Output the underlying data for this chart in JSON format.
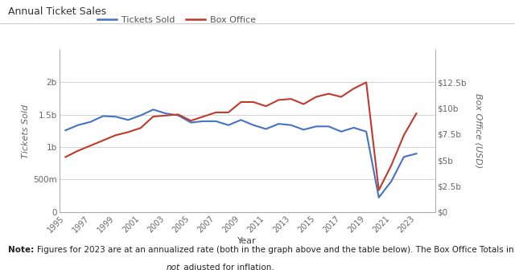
{
  "title": "Annual Ticket Sales",
  "xlabel": "Year",
  "ylabel_left": "Tickets Sold",
  "ylabel_right": "Box Office (USD)",
  "years": [
    1995,
    1996,
    1997,
    1998,
    1999,
    2000,
    2001,
    2002,
    2003,
    2004,
    2005,
    2006,
    2007,
    2008,
    2009,
    2010,
    2011,
    2012,
    2013,
    2014,
    2015,
    2016,
    2017,
    2018,
    2019,
    2020,
    2021,
    2022,
    2023
  ],
  "tickets_sold": [
    1260000000.0,
    1340000000.0,
    1390000000.0,
    1480000000.0,
    1470000000.0,
    1420000000.0,
    1490000000.0,
    1580000000.0,
    1520000000.0,
    1490000000.0,
    1380000000.0,
    1400000000.0,
    1400000000.0,
    1340000000.0,
    1420000000.0,
    1340000000.0,
    1280000000.0,
    1360000000.0,
    1340000000.0,
    1270000000.0,
    1320000000.0,
    1320000000.0,
    1240000000.0,
    1300000000.0,
    1240000000.0,
    223000000.0,
    473000000.0,
    850000000.0,
    900000000.0
  ],
  "box_office": [
    5300000000.0,
    5900000000.0,
    6400000000.0,
    6900000000.0,
    7400000000.0,
    7700000000.0,
    8100000000.0,
    9200000000.0,
    9300000000.0,
    9400000000.0,
    8800000000.0,
    9200000000.0,
    9600000000.0,
    9600000000.0,
    10600000000.0,
    10600000000.0,
    10200000000.0,
    10800000000.0,
    10900000000.0,
    10400000000.0,
    11100000000.0,
    11400000000.0,
    11100000000.0,
    11900000000.0,
    12500000000.0,
    2100000000.0,
    4500000000.0,
    7400000000.0,
    9500000000.0
  ],
  "tickets_color": "#4472C4",
  "box_office_color": "#C0392B",
  "background_color": "#FFFFFF",
  "grid_color": "#CCCCCC",
  "ylim_left": [
    0,
    2500000000.0
  ],
  "ylim_right": [
    0,
    15625000000.0
  ],
  "yticks_left": [
    0,
    500000000.0,
    1000000000.0,
    1500000000.0,
    2000000000.0
  ],
  "ytick_labels_left": [
    "0",
    "500m",
    "1b",
    "1.5b",
    "2b"
  ],
  "yticks_right": [
    0,
    2500000000.0,
    5000000000.0,
    7500000000.0,
    10000000000.0,
    12500000000.0
  ],
  "ytick_labels_right": [
    "$0",
    "$2.5b",
    "$5b",
    "$7.5b",
    "$10b",
    "$12.5b"
  ],
  "xticks": [
    1995,
    1997,
    1999,
    2001,
    2003,
    2005,
    2007,
    2009,
    2011,
    2013,
    2015,
    2017,
    2019,
    2021,
    2023
  ],
  "xlim": [
    1994.5,
    2024.5
  ],
  "line_width": 1.5,
  "title_fontsize": 9,
  "tick_fontsize": 7.5,
  "xlabel_fontsize": 8,
  "ylabel_fontsize": 8,
  "legend_fontsize": 8,
  "note_line1": "Figures for 2023 are at an annualized rate (both in the graph above and the table below). The Box Office Totals in the graph above are",
  "note_line2_italic": "not",
  "note_line2_rest": " adjusted for inflation."
}
